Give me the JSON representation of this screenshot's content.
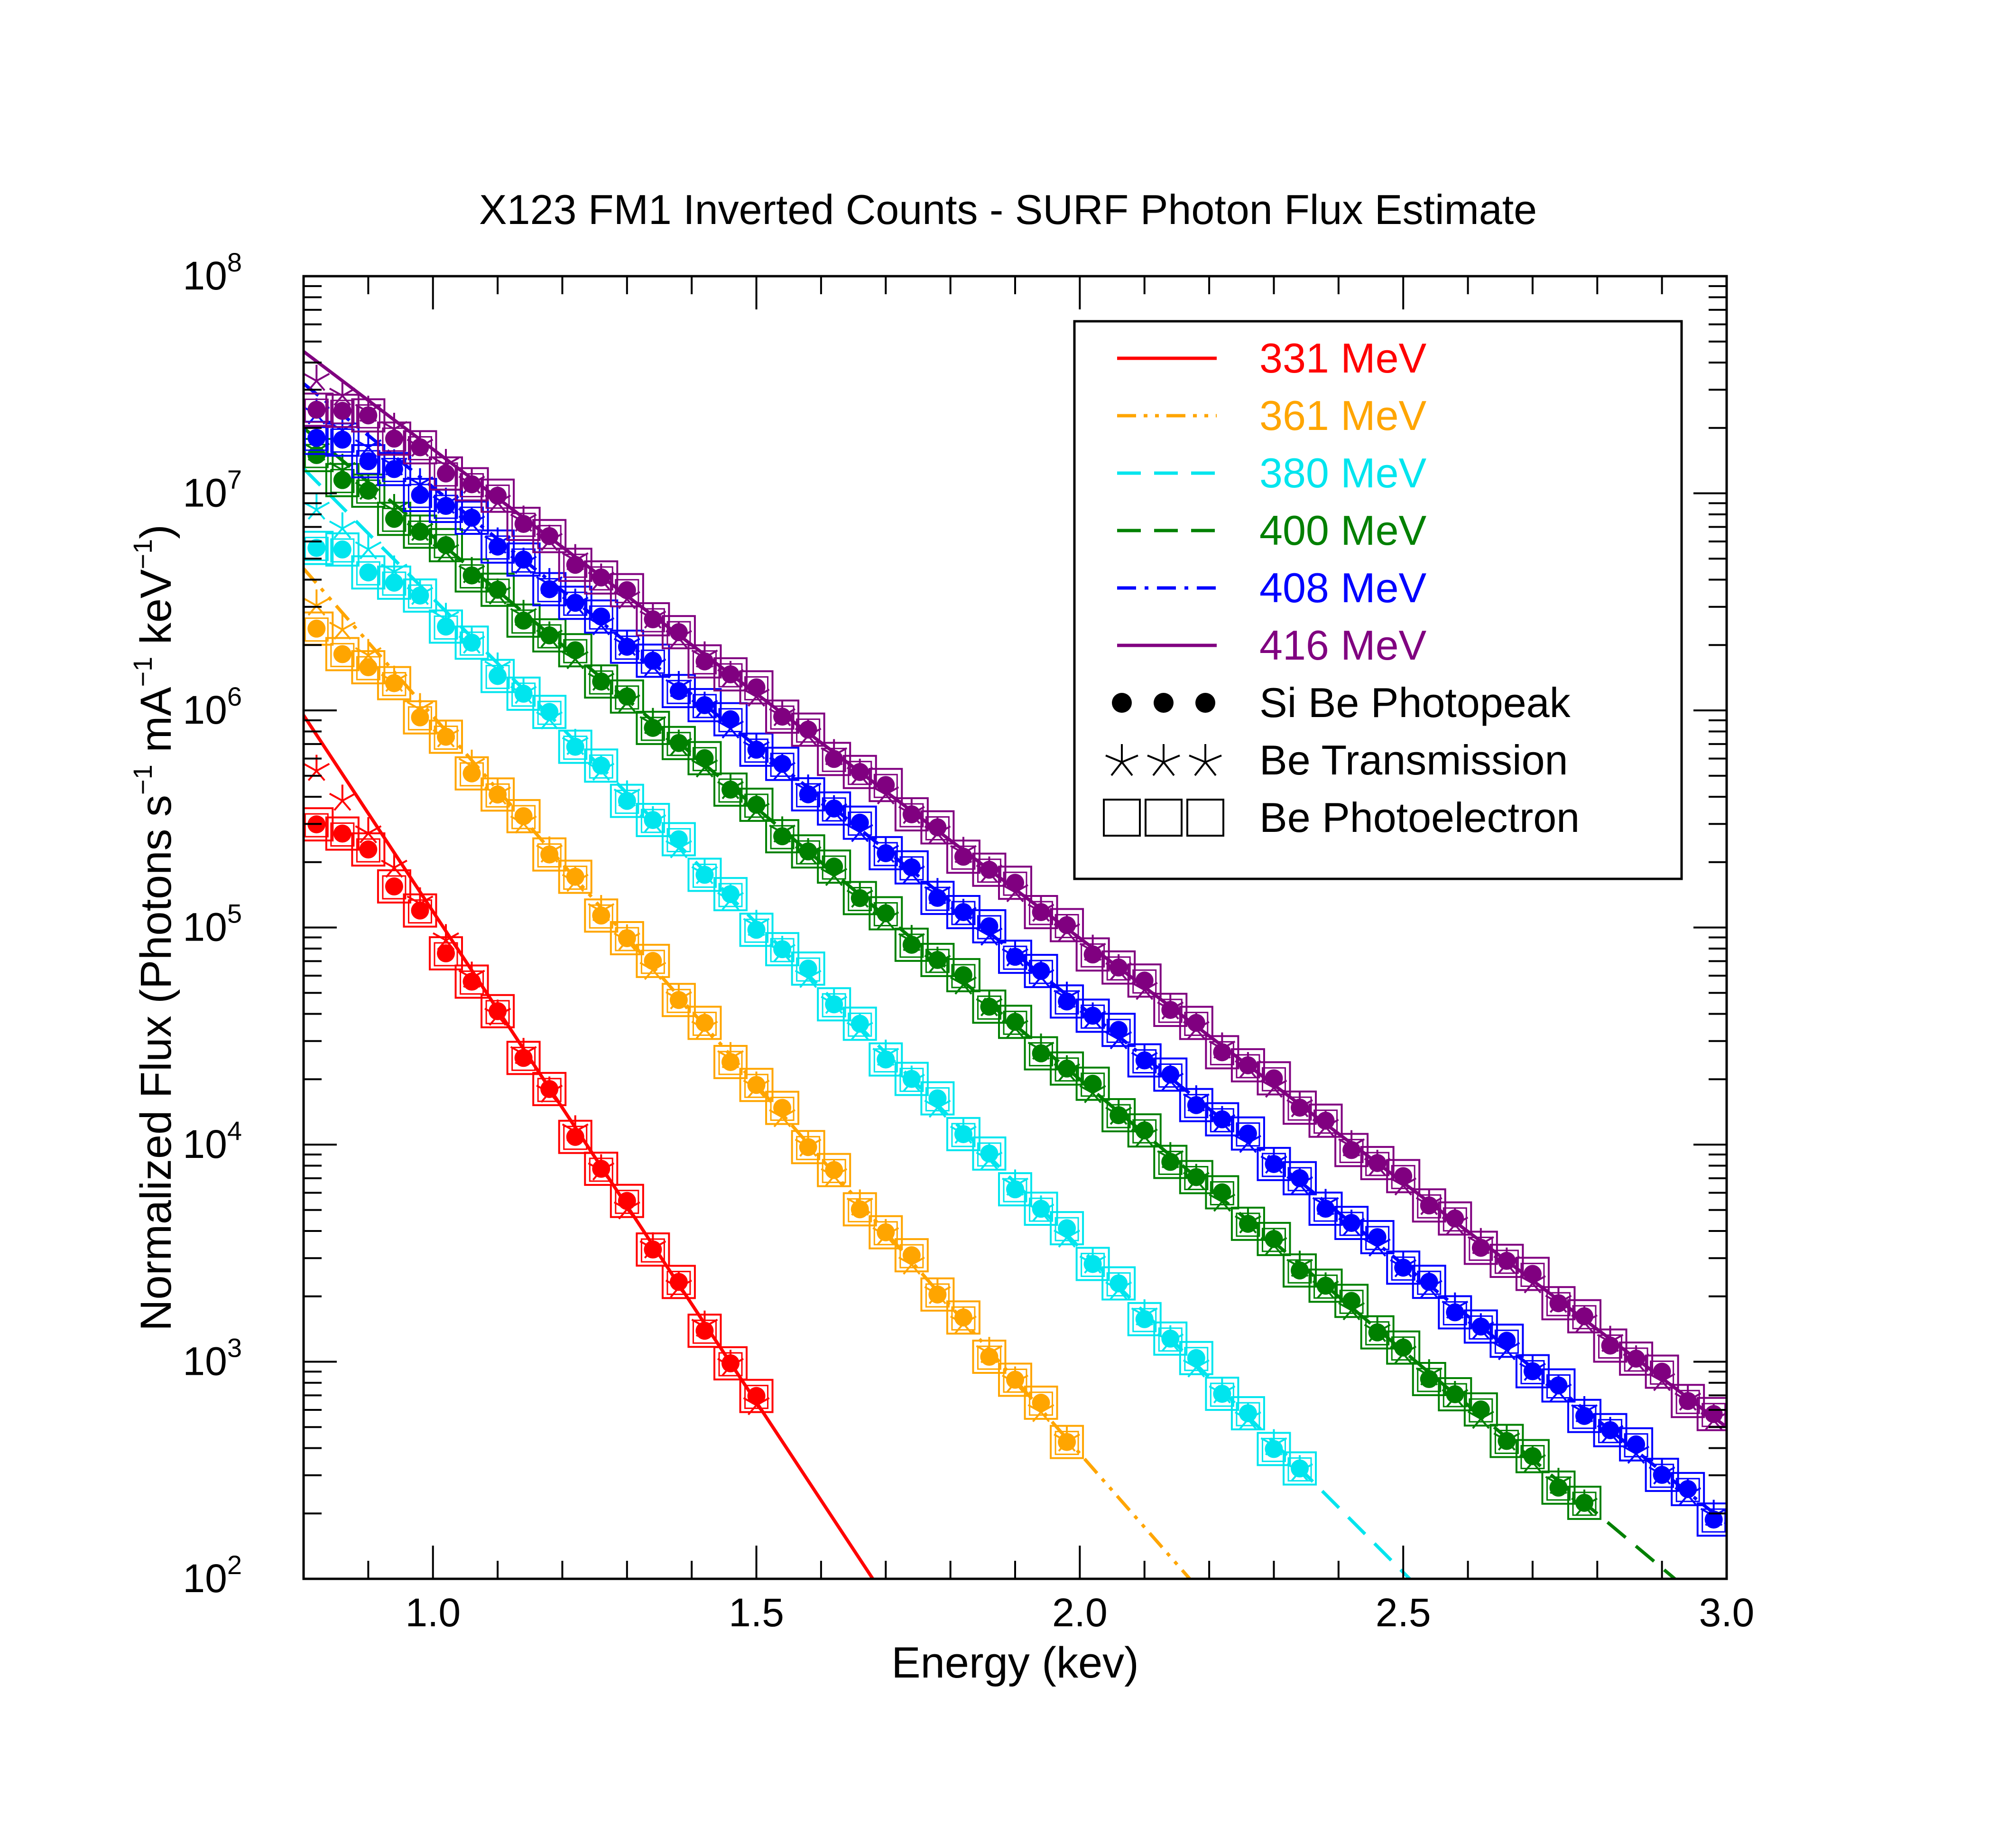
{
  "chart_data": {
    "type": "line",
    "title": "X123 FM1 Inverted Counts - SURF Photon Flux Estimate",
    "xlabel": "Energy (kev)",
    "ylabel": {
      "base": "Normalized Flux (Photons s",
      "exp1": "−1",
      "mid1": " mA",
      "exp2": "−1",
      "mid2": " keV",
      "exp3": "−1",
      "end": ")"
    },
    "xlim": [
      0.8,
      3.0
    ],
    "ylim": [
      100,
      100000000
    ],
    "yscale": "log",
    "x_ticks": [
      {
        "value": 1.0,
        "label": "1.0"
      },
      {
        "value": 1.5,
        "label": "1.5"
      },
      {
        "value": 2.0,
        "label": "2.0"
      },
      {
        "value": 2.5,
        "label": "2.5"
      },
      {
        "value": 3.0,
        "label": "3.0"
      }
    ],
    "y_ticks": [
      {
        "value": 100,
        "base": "10",
        "exp": "2"
      },
      {
        "value": 1000,
        "base": "10",
        "exp": "3"
      },
      {
        "value": 10000,
        "base": "10",
        "exp": "4"
      },
      {
        "value": 100000,
        "base": "10",
        "exp": "5"
      },
      {
        "value": 1000000,
        "base": "10",
        "exp": "6"
      },
      {
        "value": 10000000,
        "base": "10",
        "exp": "7"
      },
      {
        "value": 100000000,
        "base": "10",
        "exp": "8"
      }
    ],
    "legend_position": "top-right",
    "series": [
      {
        "name": "331 MeV",
        "color": "#ff0000",
        "dash": "solid",
        "line": [
          [
            0.8,
            950000
          ],
          [
            1.68,
            100
          ]
        ],
        "points_xmax": 1.5,
        "photopeak_start": 320000
      },
      {
        "name": "361 MeV",
        "color": "#ffa500",
        "dash": "dash-dot-dot",
        "line": [
          [
            0.8,
            4500000
          ],
          [
            2.17,
            100
          ]
        ],
        "points_xmax": 1.98,
        "photopeak_start": 2300000
      },
      {
        "name": "380 MeV",
        "color": "#00e5ee",
        "dash": "dash",
        "line": [
          [
            0.8,
            13000000
          ],
          [
            2.51,
            100
          ]
        ],
        "points_xmax": 2.34,
        "photopeak_start": 5800000
      },
      {
        "name": "400 MeV",
        "color": "#008000",
        "dash": "dash",
        "line": [
          [
            0.8,
            20000000
          ],
          [
            2.92,
            100
          ]
        ],
        "points_xmax": 2.8,
        "photopeak_start": 14000000
      },
      {
        "name": "408 MeV",
        "color": "#0000ff",
        "dash": "dash-dot",
        "line": [
          [
            0.8,
            32000000
          ],
          [
            3.0,
            180
          ]
        ],
        "points_xmax": 2.98,
        "photopeak_start": 18000000
      },
      {
        "name": "416 MeV",
        "color": "#800080",
        "dash": "solid",
        "line": [
          [
            0.8,
            45000000
          ],
          [
            3.0,
            500
          ]
        ],
        "points_xmax": 2.98,
        "photopeak_start": 26000000
      }
    ],
    "marker_legend": [
      {
        "name": "Si Be Photopeak",
        "marker": "filled-circle"
      },
      {
        "name": "Be Transmission",
        "marker": "star"
      },
      {
        "name": "Be Photoelectron",
        "marker": "open-square"
      }
    ]
  }
}
